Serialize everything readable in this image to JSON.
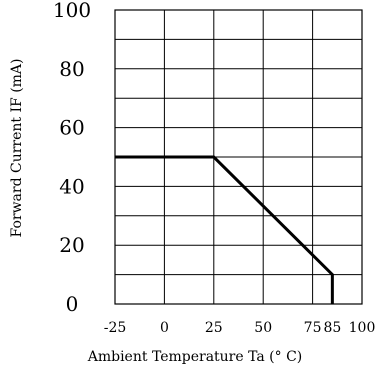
{
  "chart_data": {
    "type": "line",
    "title": "",
    "xlabel": "Ambient Temperature Ta (° C)",
    "ylabel": "Forward Current IF (mA)",
    "xlim": [
      -25,
      100
    ],
    "ylim": [
      0,
      100
    ],
    "x_ticks": [
      -25,
      0,
      25,
      50,
      75,
      85,
      100
    ],
    "x_tick_labels": [
      "-25",
      "0",
      "25",
      "50",
      "75",
      "85",
      "100"
    ],
    "y_ticks": [
      0,
      20,
      40,
      60,
      80,
      100
    ],
    "y_tick_labels": [
      "0",
      "20",
      "40",
      "60",
      "80",
      "100"
    ],
    "x_grid": [
      -25,
      0,
      25,
      50,
      75,
      100
    ],
    "y_grid": [
      0,
      10,
      20,
      30,
      40,
      50,
      60,
      70,
      80,
      90,
      100
    ],
    "grid": true,
    "series": [
      {
        "x": [
          -25,
          25,
          85,
          85
        ],
        "y": [
          50,
          50,
          10,
          0
        ]
      }
    ],
    "line_color": "#000000"
  }
}
